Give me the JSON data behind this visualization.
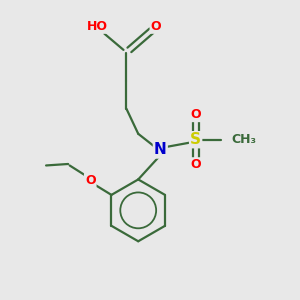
{
  "bg_color": "#e8e8e8",
  "bond_color": "#3a6a3a",
  "colors": {
    "C": "#3a6a3a",
    "O": "#ff0000",
    "N": "#0000cc",
    "S": "#cccc00",
    "H": "#4a7a7a"
  },
  "figsize": [
    3.0,
    3.0
  ],
  "dpi": 100
}
